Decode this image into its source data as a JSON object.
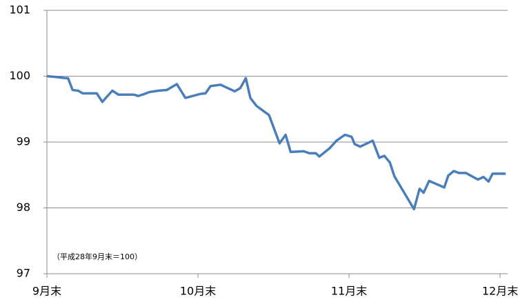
{
  "chart_data": {
    "type": "line",
    "annotation": "（平成28年9月末＝100）",
    "x": [
      0,
      1.6,
      3.7,
      4.2,
      5.1,
      6.2,
      7.1,
      9.9,
      11.0,
      13.0,
      14.2,
      17.3,
      18.1,
      19.0,
      20.4,
      22.2,
      23.8,
      25.8,
      27.5,
      30.4,
      31.5,
      32.5,
      34.5,
      37.3,
      38.4,
      39.5,
      40.4,
      41.6,
      44.1,
      46.2,
      47.4,
      48.4,
      51.0,
      52.1,
      53.4,
      54.1,
      56.2,
      57.5,
      58.8,
      59.2,
      60.5,
      61.1,
      62.2,
      64.7,
      66.0,
      67.0,
      68.1,
      69.0,
      72.9,
      74.0,
      74.8,
      75.9,
      78.9,
      79.7,
      80.8,
      81.8,
      83.2,
      85.6,
      86.7,
      87.7,
      88.5,
      91.1
    ],
    "series": [
      {
        "color": "#4a7ebb",
        "values": [
          100.0,
          99.99,
          99.97,
          99.97,
          99.79,
          99.78,
          99.74,
          99.74,
          99.61,
          99.78,
          99.72,
          99.72,
          99.7,
          99.72,
          99.76,
          99.78,
          99.79,
          99.88,
          99.67,
          99.73,
          99.74,
          99.85,
          99.87,
          99.77,
          99.82,
          99.97,
          99.67,
          99.55,
          99.41,
          98.98,
          99.11,
          98.85,
          98.86,
          98.83,
          98.83,
          98.78,
          98.91,
          99.02,
          99.09,
          99.11,
          99.08,
          98.97,
          98.93,
          99.02,
          98.76,
          98.79,
          98.69,
          98.48,
          97.98,
          98.29,
          98.23,
          98.41,
          98.31,
          98.49,
          98.56,
          98.53,
          98.53,
          98.43,
          98.47,
          98.4,
          98.52,
          98.52
        ]
      }
    ],
    "xlim": [
      0,
      91.5
    ],
    "xticks": [
      {
        "value": 0,
        "label": "9月末"
      },
      {
        "value": 30,
        "label": "10月末"
      },
      {
        "value": 60,
        "label": "11月末"
      },
      {
        "value": 90,
        "label": "12月末"
      }
    ],
    "ylim": [
      97,
      101
    ],
    "yticks": [
      97,
      98,
      99,
      100,
      101
    ],
    "grid": true
  }
}
